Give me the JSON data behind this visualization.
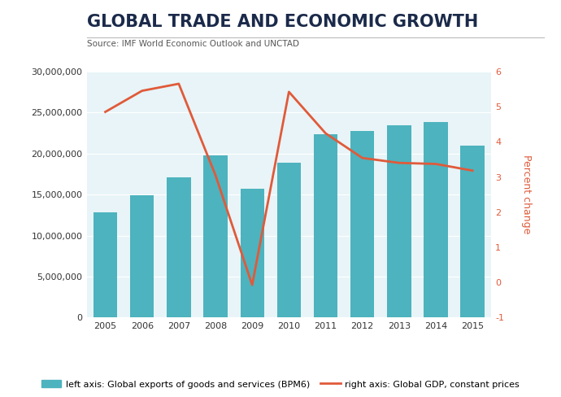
{
  "title": "GLOBAL TRADE AND ECONOMIC GROWTH",
  "source": "Source: IMF World Economic Outlook and UNCTAD",
  "years": [
    2005,
    2006,
    2007,
    2008,
    2009,
    2010,
    2011,
    2012,
    2013,
    2014,
    2015
  ],
  "exports": [
    12800000,
    14900000,
    17100000,
    19800000,
    15700000,
    18900000,
    22300000,
    22700000,
    23400000,
    23800000,
    21000000
  ],
  "gdp_growth": [
    4.85,
    5.45,
    5.65,
    3.05,
    -0.07,
    5.42,
    4.24,
    3.54,
    3.4,
    3.37,
    3.18
  ],
  "bar_color": "#4db3be",
  "line_color": "#e05a3a",
  "background_color": "#e8f4f7",
  "left_ylim": [
    0,
    30000000
  ],
  "right_ylim": [
    -1,
    6
  ],
  "left_yticks": [
    0,
    5000000,
    10000000,
    15000000,
    20000000,
    25000000,
    30000000
  ],
  "right_yticks": [
    -1,
    0,
    1,
    2,
    3,
    4,
    5,
    6
  ],
  "legend_bar_label": "left axis: Global exports of goods and services (BPM6)",
  "legend_line_label": "right axis: Global GDP, constant prices",
  "ylabel_right": "Percent change",
  "title_fontsize": 15,
  "source_fontsize": 7.5,
  "tick_fontsize": 8,
  "bar_width": 0.65
}
